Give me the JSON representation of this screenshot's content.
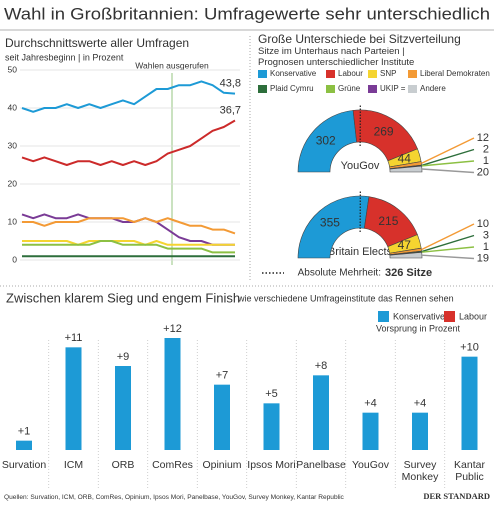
{
  "title": "Wahl in Großbritannien: Umfragewerte sehr unterschiedlich",
  "chart_data": [
    {
      "type": "line",
      "title": "Durchschnittswerte aller Umfragen",
      "subtitle": "seit Jahresbeginn | in Prozent",
      "annotation": "Wahlen ausgerufen",
      "categories": [
        null,
        null,
        null,
        null,
        null,
        null,
        null,
        null,
        null,
        null,
        null,
        null,
        null,
        null,
        null,
        null,
        null,
        null,
        null,
        null
      ],
      "ylim": [
        0,
        50
      ],
      "yticks": [
        0,
        10,
        20,
        30,
        40,
        50
      ],
      "grid": true,
      "series": [
        {
          "color": "#1d9ad6",
          "values": [
            40,
            39,
            40,
            40,
            41,
            40,
            41,
            40,
            41,
            42,
            41,
            43,
            45,
            45,
            46,
            46,
            47,
            46,
            44,
            43.8
          ],
          "value_labels": [
            null,
            null,
            null,
            null,
            null,
            null,
            null,
            null,
            null,
            null,
            null,
            null,
            null,
            null,
            null,
            null,
            null,
            null,
            null,
            "43,8"
          ]
        },
        {
          "color": "#cc2a2a",
          "values": [
            27,
            26,
            27,
            26,
            25,
            26,
            26,
            25,
            26,
            25,
            26,
            25,
            26,
            28,
            29,
            30,
            32,
            34,
            35,
            36.7
          ],
          "value_labels": [
            null,
            null,
            null,
            null,
            null,
            null,
            null,
            null,
            null,
            null,
            null,
            null,
            null,
            null,
            null,
            null,
            null,
            null,
            null,
            "36,7"
          ]
        },
        {
          "color": "#7a3b96",
          "values": [
            12,
            11,
            12,
            11,
            11,
            12,
            11,
            11,
            11,
            10,
            10,
            11,
            10,
            8,
            6,
            5,
            5,
            4,
            4,
            4
          ]
        },
        {
          "color": "#f39a35",
          "values": [
            10,
            10,
            9,
            10,
            10,
            10,
            11,
            11,
            11,
            11,
            10,
            11,
            10,
            11,
            10,
            9,
            9,
            8,
            8,
            7
          ]
        },
        {
          "color": "#f5d430",
          "values": [
            5,
            5,
            5,
            5,
            5,
            4,
            5,
            5,
            5,
            5,
            5,
            4,
            5,
            4,
            4,
            4,
            4,
            4,
            4,
            4
          ]
        },
        {
          "color": "#8cc043",
          "values": [
            4,
            4,
            4,
            4,
            4,
            4,
            4,
            5,
            5,
            4,
            4,
            4,
            4,
            3,
            3,
            3,
            3,
            2,
            2,
            2
          ]
        },
        {
          "color": "#2d6e3b",
          "values": [
            1,
            1,
            1,
            1,
            1,
            1,
            1,
            1,
            1,
            1,
            1,
            1,
            1,
            1,
            1,
            1,
            1,
            1,
            1,
            1
          ]
        }
      ]
    },
    {
      "type": "half-donut",
      "title": "Große Unterschiede bei Sitzverteilung",
      "subtitle": "Sitze im Unterhaus nach Parteien | Prognosen unterschiedlicher Institute",
      "categories": [
        "YouGov",
        "Britain Elects"
      ],
      "series": [
        {
          "name": "Konservative",
          "color": "#1d9ad6",
          "values": [
            302,
            355
          ]
        },
        {
          "name": "Labour",
          "color": "#d7312b",
          "values": [
            269,
            215
          ]
        },
        {
          "name": "SNP",
          "color": "#f5d430",
          "values": [
            44,
            47
          ]
        },
        {
          "name": "Liberal Demokraten",
          "color": "#f39a35",
          "values": [
            12,
            10
          ]
        },
        {
          "name": "Plaid Cymru",
          "color": "#2d6e3b",
          "values": [
            2,
            3
          ]
        },
        {
          "name": "Grüne",
          "color": "#8cc043",
          "values": [
            1,
            1
          ]
        },
        {
          "name": "UKIP = 0",
          "color": "#7a3b96",
          "values": [
            0,
            0
          ]
        },
        {
          "name": "Andere",
          "color": "#c8cdd0",
          "values": [
            20,
            19
          ]
        }
      ],
      "majority_text": "Absolute Mehrheit:",
      "majority": {
        "value": 326,
        "label": "326 Sitze"
      }
    },
    {
      "type": "bar",
      "title": "Zwischen klarem Sieg und engem Finish",
      "subtitle": "wie verschiedene Umfrageinstitute das Rennen sehen",
      "y_label": "Vorsprung in Prozent",
      "categories": [
        "Survation",
        "ICM",
        "ORB",
        "ComRes",
        "Opinium",
        "Ipsos Mori",
        "Panelbase",
        "YouGov",
        "Survey Monkey",
        "Kantar Public"
      ],
      "series": [
        {
          "name": "Konservative",
          "color": "#1d9ad6",
          "values": [
            1,
            11,
            9,
            12,
            7,
            5,
            8,
            4,
            4,
            10
          ],
          "value_labels": [
            "+1",
            "+11",
            "+9",
            "+12",
            "+7",
            "+5",
            "+8",
            "+4",
            "+4",
            "+10"
          ]
        },
        {
          "name": "Labour",
          "color": "#d7312b",
          "values": [
            null,
            null,
            null,
            null,
            null,
            null,
            null,
            null,
            null,
            null
          ]
        }
      ]
    }
  ],
  "source": "Quellen: Survation, ICM, ORB, ComRes, Opinium, Ipsos Mori, Panelbase, YouGov, Survey Monkey, Kantar Republic",
  "logo": "DER STANDARD"
}
